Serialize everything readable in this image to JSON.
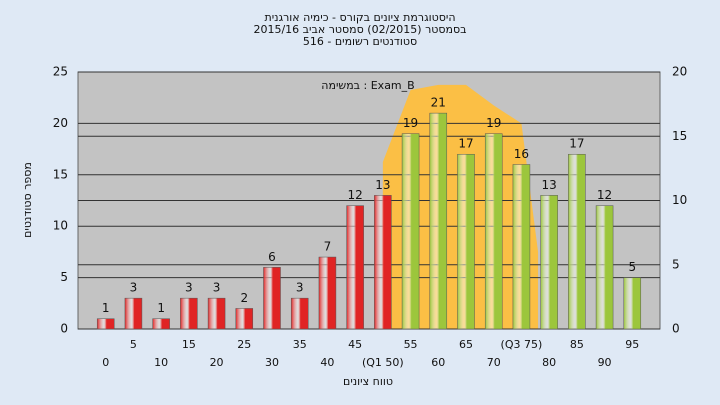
{
  "chart_data": {
    "type": "bar",
    "title": [
      "היסטוגרמת ציונים בקורס - כימיה אורגנית",
      "בסמסטר  (02/2015)  סמסטר אביב 2015/16",
      "סטודנטים רשומים - 516"
    ],
    "annotation": "במשימה : Exam_B",
    "y_label": "מספר סטודנטים",
    "x_label": "טווח ציונים",
    "categories": [
      "0",
      "5",
      "10",
      "15",
      "20",
      "25",
      "30",
      "35",
      "40",
      "45",
      "(Q1 50)",
      "55",
      "60",
      "65",
      "70",
      "(Q3 75)",
      "80",
      "85",
      "90",
      "95"
    ],
    "values": [
      1,
      3,
      1,
      3,
      3,
      2,
      6,
      3,
      7,
      12,
      13,
      19,
      21,
      17,
      19,
      16,
      13,
      17,
      12,
      5
    ],
    "colors": [
      "#e02424",
      "#e02424",
      "#e02424",
      "#e02424",
      "#e02424",
      "#e02424",
      "#e02424",
      "#e02424",
      "#e02424",
      "#e02424",
      "#e02424",
      "#9cc63c",
      "#9cc63c",
      "#9cc63c",
      "#9cc63c",
      "#9cc63c",
      "#9cc63c",
      "#9cc63c",
      "#9cc63c",
      "#9cc63c"
    ],
    "area": {
      "color": "#fbbf45",
      "axis": "y2",
      "x": [
        50,
        55,
        60,
        65,
        70,
        75,
        78
      ],
      "values": [
        13,
        18.6,
        19,
        19,
        17.4,
        16,
        6
      ]
    },
    "ylim": [
      0,
      25
    ],
    "yticks": [
      0,
      5,
      10,
      15,
      20,
      25
    ],
    "y2lim": [
      0,
      20
    ],
    "y2ticks": [
      0,
      5,
      10,
      15,
      20
    ],
    "grid": true
  }
}
